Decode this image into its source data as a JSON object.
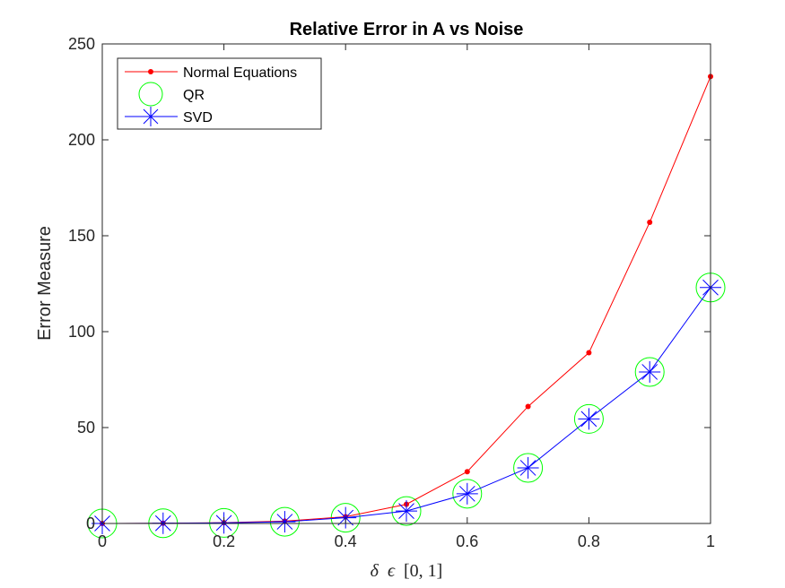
{
  "chart_data": {
    "type": "line",
    "title": "Relative Error in A vs Noise",
    "xlabel_parts": [
      "δ",
      "ϵ",
      "[0, 1]"
    ],
    "ylabel": "Error Measure",
    "xlim": [
      0,
      1
    ],
    "ylim": [
      0,
      250
    ],
    "x_ticks": [
      0,
      0.2,
      0.4,
      0.6,
      0.8,
      1
    ],
    "x_tick_labels": [
      "0",
      "0.2",
      "0.4",
      "0.6",
      "0.8",
      "1"
    ],
    "y_ticks": [
      0,
      50,
      100,
      150,
      200,
      250
    ],
    "y_tick_labels": [
      "0",
      "50",
      "100",
      "150",
      "200",
      "250"
    ],
    "grid": false,
    "legend_position": "top-left",
    "x": [
      0,
      0.1,
      0.2,
      0.3,
      0.4,
      0.5,
      0.6,
      0.7,
      0.8,
      0.9,
      1.0
    ],
    "series": [
      {
        "name": "Normal Equations",
        "color": "#ff0000",
        "marker": "dot",
        "values": [
          0,
          0.1,
          0.4,
          1.2,
          3.5,
          10,
          27,
          61,
          89,
          157,
          233
        ]
      },
      {
        "name": "QR",
        "color": "#00ff00",
        "marker": "circle",
        "line": false,
        "values": [
          0,
          0.1,
          0.3,
          0.9,
          3,
          6.5,
          15.5,
          29,
          54.5,
          79,
          123
        ]
      },
      {
        "name": "SVD",
        "color": "#0000ff",
        "marker": "asterisk",
        "values": [
          0,
          0.1,
          0.3,
          0.9,
          3,
          6.5,
          15.5,
          29,
          54.5,
          79,
          123
        ]
      }
    ]
  }
}
